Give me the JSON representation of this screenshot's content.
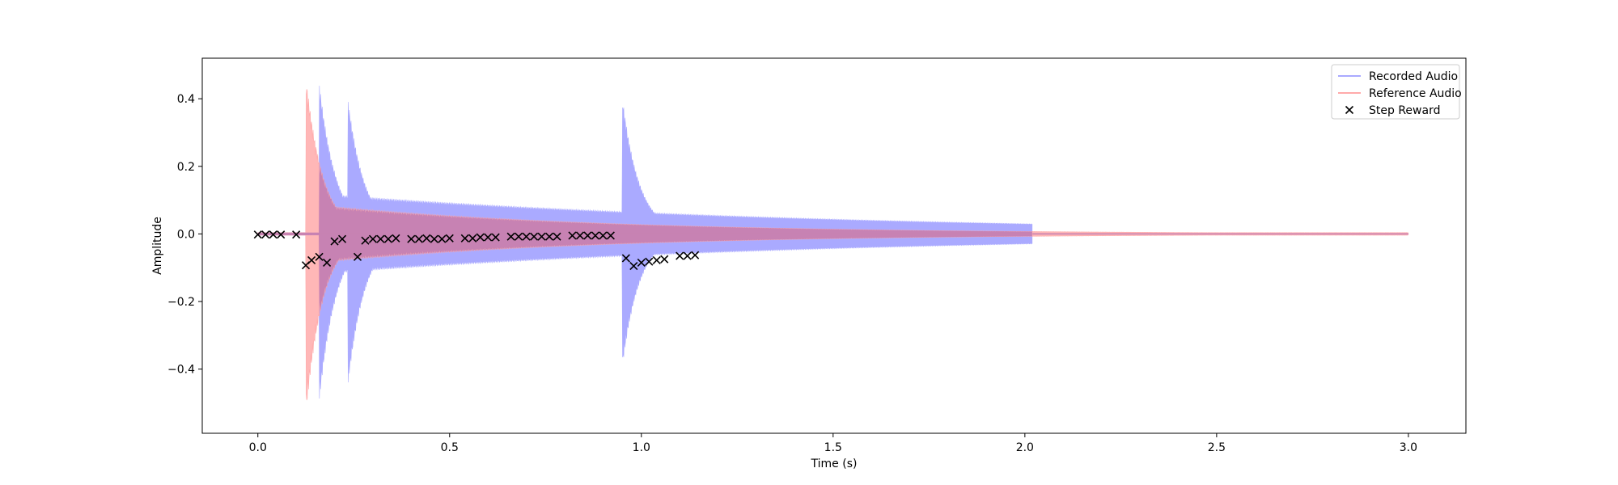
{
  "chart_data": {
    "type": "line",
    "title": "",
    "xlabel": "Time (s)",
    "ylabel": "Amplitude",
    "xlim": [
      -0.145,
      3.15
    ],
    "ylim": [
      -0.59,
      0.52
    ],
    "xticks": [
      0.0,
      0.5,
      1.0,
      1.5,
      2.0,
      2.5,
      3.0
    ],
    "xtick_labels": [
      "0.0",
      "0.5",
      "1.0",
      "1.5",
      "2.0",
      "2.5",
      "3.0"
    ],
    "yticks": [
      -0.4,
      -0.2,
      0.0,
      0.2,
      0.4
    ],
    "ytick_labels": [
      "−0.4",
      "−0.2",
      "0.0",
      "0.2",
      "0.4"
    ],
    "grid": false,
    "legend_position": "top-right",
    "series": [
      {
        "name": "Recorded Audio",
        "kind": "envelope-line",
        "color": "#aaaaff",
        "x_end": 2.02,
        "onsets": [
          {
            "t": 0.16,
            "peak_pos": 0.45,
            "peak_neg": -0.5
          },
          {
            "t": 0.235,
            "peak_pos": 0.4,
            "peak_neg": -0.45
          },
          {
            "t": 0.95,
            "peak_pos": 0.41,
            "peak_neg": -0.4
          }
        ],
        "sustain_start": 0.12,
        "sustain_end": 0.03
      },
      {
        "name": "Reference Audio",
        "kind": "envelope-line",
        "color": "#ffaaaa",
        "x_end": 3.0,
        "onsets": [
          {
            "t": 0.125,
            "peak_pos": 0.47,
            "peak_neg": -0.54
          }
        ],
        "sustain_start": 0.09,
        "sustain_end": 0.002
      },
      {
        "name": "Step Reward",
        "kind": "scatter",
        "marker": "x",
        "color": "#000000",
        "x": [
          0.0,
          0.02,
          0.04,
          0.06,
          0.1,
          0.125,
          0.14,
          0.16,
          0.18,
          0.2,
          0.22,
          0.26,
          0.28,
          0.3,
          0.32,
          0.34,
          0.36,
          0.4,
          0.42,
          0.44,
          0.46,
          0.48,
          0.5,
          0.54,
          0.56,
          0.58,
          0.6,
          0.62,
          0.66,
          0.68,
          0.7,
          0.72,
          0.74,
          0.76,
          0.78,
          0.82,
          0.84,
          0.86,
          0.88,
          0.9,
          0.92,
          0.96,
          0.98,
          1.0,
          1.02,
          1.04,
          1.06,
          1.1,
          1.12,
          1.14
        ],
        "y": [
          -0.002,
          -0.002,
          -0.002,
          -0.002,
          -0.002,
          -0.093,
          -0.078,
          -0.068,
          -0.085,
          -0.022,
          -0.015,
          -0.068,
          -0.02,
          -0.015,
          -0.015,
          -0.015,
          -0.013,
          -0.015,
          -0.015,
          -0.013,
          -0.015,
          -0.015,
          -0.013,
          -0.013,
          -0.013,
          -0.01,
          -0.01,
          -0.01,
          -0.008,
          -0.008,
          -0.008,
          -0.008,
          -0.008,
          -0.008,
          -0.008,
          -0.005,
          -0.005,
          -0.005,
          -0.005,
          -0.005,
          -0.005,
          -0.072,
          -0.095,
          -0.085,
          -0.082,
          -0.078,
          -0.075,
          -0.065,
          -0.065,
          -0.063
        ]
      }
    ]
  }
}
